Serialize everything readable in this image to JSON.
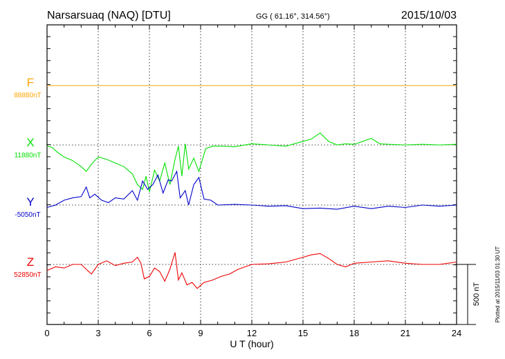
{
  "header": {
    "station": "Narsarsuaq (NAQ)  [DTU]",
    "coords": "GG ( 61.16°, 314.56°)",
    "date": "2015/10/03"
  },
  "footer": {
    "plotted_note": "Plotted at 2015/11/03 01:30 UT",
    "scale_label": "500 nT"
  },
  "colors": {
    "F": "#ffa500",
    "X": "#00e000",
    "Y": "#0000cc",
    "Z": "#ee0000"
  },
  "chart_data": {
    "type": "line",
    "title": "Narsarsuaq (NAQ)  [DTU]",
    "xlabel": "U T (hour)",
    "xlim": [
      0,
      24
    ],
    "xticks": [
      "0",
      "3",
      "6",
      "9",
      "12",
      "15",
      "18",
      "21",
      "24"
    ],
    "scale_nT": 500,
    "grid": true,
    "series": [
      {
        "name": "F",
        "baseline_label": "88880nT",
        "baseline_nT": 88880,
        "x": [
          0,
          24
        ],
        "offset_nT": [
          0,
          0
        ]
      },
      {
        "name": "X",
        "baseline_label": "11880nT",
        "baseline_nT": 11880,
        "x": [
          0,
          0.3,
          0.6,
          1,
          1.5,
          2,
          2.3,
          2.6,
          3,
          3.5,
          4,
          4.5,
          5,
          5.3,
          5.6,
          5.8,
          6,
          6.3,
          6.6,
          6.9,
          7.2,
          7.5,
          7.7,
          7.9,
          8.1,
          8.3,
          8.6,
          8.9,
          9.3,
          9.7,
          10.2,
          11,
          12,
          13,
          14,
          15,
          15.5,
          16,
          16.5,
          17,
          17.5,
          18,
          18.5,
          19,
          19.5,
          20,
          21,
          22,
          23,
          24
        ],
        "offset_nT": [
          -10,
          -20,
          -60,
          -100,
          -130,
          -180,
          -220,
          -160,
          -100,
          -120,
          -150,
          -180,
          -240,
          -330,
          -370,
          -260,
          -390,
          -210,
          -300,
          -150,
          -330,
          -120,
          -10,
          -260,
          10,
          -200,
          -110,
          -220,
          -30,
          -10,
          -10,
          -15,
          10,
          0,
          -10,
          30,
          50,
          100,
          30,
          0,
          10,
          5,
          30,
          55,
          10,
          5,
          0,
          5,
          0,
          5
        ]
      },
      {
        "name": "Y",
        "baseline_label": "-5050nT",
        "baseline_nT": -5050,
        "x": [
          0,
          0.5,
          1,
          1.5,
          2,
          2.3,
          2.5,
          2.8,
          3.2,
          3.6,
          4,
          4.5,
          5,
          5.3,
          5.6,
          5.9,
          6.2,
          6.5,
          6.8,
          7.1,
          7.3,
          7.6,
          7.8,
          8.1,
          8.3,
          8.6,
          8.9,
          9.2,
          9.6,
          10,
          11,
          12,
          13,
          14,
          15,
          16,
          17,
          18,
          19,
          20,
          21,
          22,
          23,
          24
        ],
        "offset_nT": [
          -20,
          0,
          40,
          60,
          70,
          150,
          60,
          90,
          40,
          20,
          60,
          50,
          120,
          40,
          200,
          130,
          170,
          250,
          100,
          210,
          200,
          280,
          60,
          120,
          0,
          170,
          230,
          50,
          40,
          0,
          5,
          0,
          -10,
          -5,
          -30,
          -25,
          -35,
          -10,
          -30,
          -10,
          -20,
          0,
          -10,
          0
        ]
      },
      {
        "name": "Z",
        "baseline_label": "52850nT",
        "baseline_nT": 52850,
        "x": [
          0,
          0.5,
          1,
          1.5,
          2,
          2.3,
          2.6,
          3,
          3.5,
          4,
          4.5,
          5,
          5.3,
          5.5,
          5.7,
          6,
          6.3,
          6.6,
          6.9,
          7.2,
          7.5,
          7.7,
          7.9,
          8.2,
          8.5,
          8.8,
          9.2,
          9.7,
          10.2,
          10.7,
          11.2,
          12,
          13,
          14,
          15,
          15.5,
          16,
          16.5,
          17,
          17.5,
          18,
          19,
          20,
          21,
          22,
          23,
          24
        ],
        "offset_nT": [
          -50,
          -20,
          -30,
          0,
          0,
          -40,
          -80,
          0,
          30,
          -10,
          10,
          20,
          60,
          10,
          -120,
          -100,
          -30,
          -60,
          -140,
          -40,
          100,
          -130,
          -70,
          -170,
          -150,
          -200,
          -150,
          -130,
          -100,
          -80,
          -40,
          0,
          5,
          20,
          60,
          80,
          90,
          50,
          0,
          -20,
          10,
          20,
          30,
          10,
          0,
          0,
          20
        ]
      }
    ]
  }
}
